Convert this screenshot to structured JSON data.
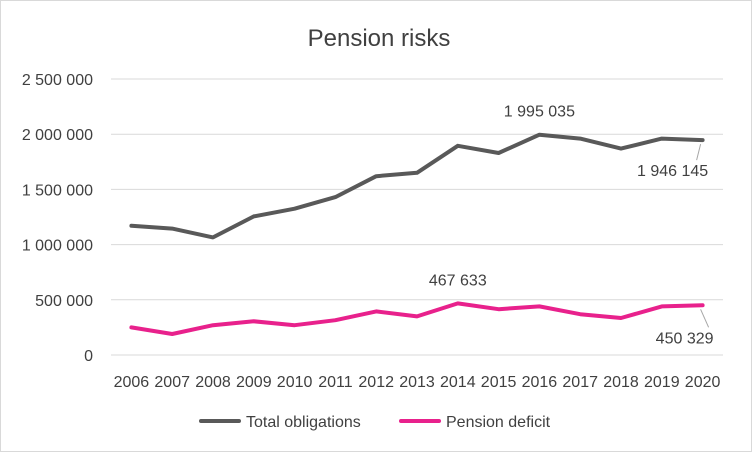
{
  "chart_data": {
    "type": "line",
    "title": "Pension risks",
    "x": [
      "2006",
      "2007",
      "2008",
      "2009",
      "2010",
      "2011",
      "2012",
      "2013",
      "2014",
      "2015",
      "2016",
      "2017",
      "2018",
      "2019",
      "2020"
    ],
    "yticks": [
      0,
      500000,
      1000000,
      1500000,
      2000000,
      2500000
    ],
    "ytick_labels": [
      "0",
      "500 000",
      "1 000 000",
      "1 500 000",
      "2 000 000",
      "2 500 000"
    ],
    "ylim": [
      0,
      2500000
    ],
    "grid": true,
    "legend_position": "bottom",
    "series": [
      {
        "name": "Total obligations",
        "color": "#595959",
        "values": [
          1170000,
          1145000,
          1065000,
          1255000,
          1325000,
          1430000,
          1620000,
          1650000,
          1895000,
          1830000,
          1995035,
          1960000,
          1870000,
          1960000,
          1946145
        ]
      },
      {
        "name": "Pension deficit",
        "color": "#e8218c",
        "values": [
          250000,
          190000,
          270000,
          305000,
          270000,
          315000,
          395000,
          350000,
          467633,
          415000,
          440000,
          370000,
          335000,
          440000,
          450329
        ]
      }
    ],
    "annotations": [
      {
        "series": 0,
        "index": 10,
        "text": "1 995 035"
      },
      {
        "series": 0,
        "index": 14,
        "text": "1 946 145"
      },
      {
        "series": 1,
        "index": 8,
        "text": "467 633"
      },
      {
        "series": 1,
        "index": 14,
        "text": "450 329"
      }
    ]
  }
}
